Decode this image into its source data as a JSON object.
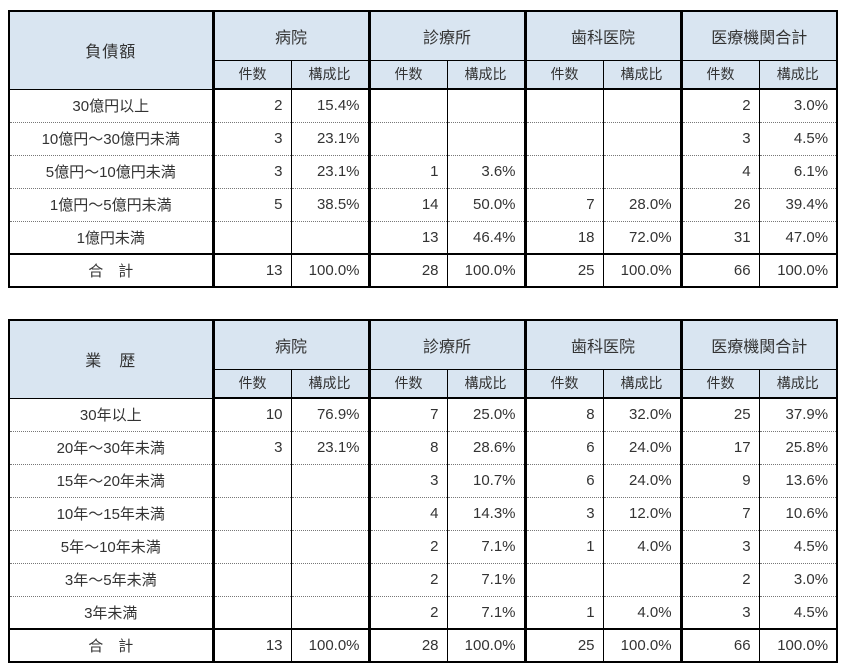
{
  "colors": {
    "header_bg": "#d9e5f1",
    "border": "#000000",
    "dotted_rule": "#777777",
    "text": "#333333"
  },
  "tables": [
    {
      "corner_label": "負債額",
      "groups": [
        "病院",
        "診療所",
        "歯科医院",
        "医療機関合計"
      ],
      "col_count": "件数",
      "col_ratio": "構成比",
      "rows": [
        {
          "label": "30億円以上",
          "cells": [
            "2",
            "15.4%",
            "",
            "",
            "",
            "",
            "2",
            "3.0%"
          ]
        },
        {
          "label": "10億円〜30億円未満",
          "cells": [
            "3",
            "23.1%",
            "",
            "",
            "",
            "",
            "3",
            "4.5%"
          ]
        },
        {
          "label": "5億円〜10億円未満",
          "cells": [
            "3",
            "23.1%",
            "1",
            "3.6%",
            "",
            "",
            "4",
            "6.1%"
          ]
        },
        {
          "label": "1億円〜5億円未満",
          "cells": [
            "5",
            "38.5%",
            "14",
            "50.0%",
            "7",
            "28.0%",
            "26",
            "39.4%"
          ]
        },
        {
          "label": "1億円未満",
          "cells": [
            "",
            "",
            "13",
            "46.4%",
            "18",
            "72.0%",
            "31",
            "47.0%"
          ]
        }
      ],
      "total": {
        "label": "合　計",
        "cells": [
          "13",
          "100.0%",
          "28",
          "100.0%",
          "25",
          "100.0%",
          "66",
          "100.0%"
        ]
      }
    },
    {
      "corner_label": "業　歴",
      "groups": [
        "病院",
        "診療所",
        "歯科医院",
        "医療機関合計"
      ],
      "col_count": "件数",
      "col_ratio": "構成比",
      "rows": [
        {
          "label": "30年以上",
          "cells": [
            "10",
            "76.9%",
            "7",
            "25.0%",
            "8",
            "32.0%",
            "25",
            "37.9%"
          ]
        },
        {
          "label": "20年〜30年未満",
          "cells": [
            "3",
            "23.1%",
            "8",
            "28.6%",
            "6",
            "24.0%",
            "17",
            "25.8%"
          ]
        },
        {
          "label": "15年〜20年未満",
          "cells": [
            "",
            "",
            "3",
            "10.7%",
            "6",
            "24.0%",
            "9",
            "13.6%"
          ]
        },
        {
          "label": "10年〜15年未満",
          "cells": [
            "",
            "",
            "4",
            "14.3%",
            "3",
            "12.0%",
            "7",
            "10.6%"
          ]
        },
        {
          "label": "5年〜10年未満",
          "cells": [
            "",
            "",
            "2",
            "7.1%",
            "1",
            "4.0%",
            "3",
            "4.5%"
          ]
        },
        {
          "label": "3年〜5年未満",
          "cells": [
            "",
            "",
            "2",
            "7.1%",
            "",
            "",
            "2",
            "3.0%"
          ]
        },
        {
          "label": "3年未満",
          "cells": [
            "",
            "",
            "2",
            "7.1%",
            "1",
            "4.0%",
            "3",
            "4.5%"
          ]
        }
      ],
      "total": {
        "label": "合　計",
        "cells": [
          "13",
          "100.0%",
          "28",
          "100.0%",
          "25",
          "100.0%",
          "66",
          "100.0%"
        ]
      }
    }
  ]
}
